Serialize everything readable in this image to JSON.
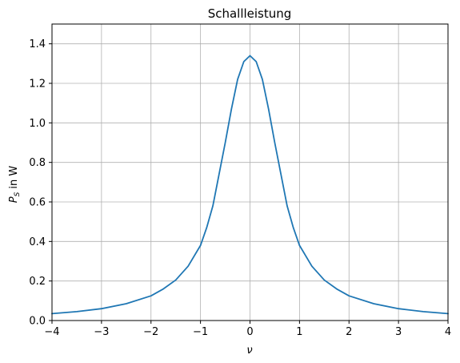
{
  "chart_data": {
    "type": "line",
    "title": "Schallleistung",
    "xlabel": "ν",
    "ylabel_main": "P",
    "ylabel_sub": "S",
    "ylabel_rest": " in W",
    "xlim": [
      -4,
      4
    ],
    "ylim": [
      0,
      1.5
    ],
    "x_ticks": [
      -4,
      -3,
      -2,
      -1,
      0,
      1,
      2,
      3,
      4
    ],
    "x_tick_labels": [
      "−4",
      "−3",
      "−2",
      "−1",
      "0",
      "1",
      "2",
      "3",
      "4"
    ],
    "y_ticks": [
      0,
      0.2,
      0.4,
      0.6,
      0.8,
      1.0,
      1.2,
      1.4
    ],
    "y_tick_labels": [
      "0.0",
      "0.2",
      "0.4",
      "0.6",
      "0.8",
      "1.0",
      "1.2",
      "1.4"
    ],
    "grid": true,
    "line_color": "#1f77b4",
    "grid_color": "#b0b0b0",
    "series": [
      {
        "x": [
          -4,
          -3.5,
          -3,
          -2.5,
          -2,
          -1.75,
          -1.5,
          -1.25,
          -1,
          -0.875,
          -0.75,
          -0.625,
          -0.5,
          -0.375,
          -0.25,
          -0.125,
          0,
          0.125,
          0.25,
          0.375,
          0.5,
          0.625,
          0.75,
          0.875,
          1,
          1.25,
          1.5,
          1.75,
          2,
          2.5,
          3,
          3.5,
          4
        ],
        "y": [
          0.035,
          0.045,
          0.06,
          0.085,
          0.125,
          0.16,
          0.205,
          0.275,
          0.38,
          0.47,
          0.58,
          0.74,
          0.9,
          1.07,
          1.22,
          1.31,
          1.34,
          1.31,
          1.22,
          1.07,
          0.9,
          0.74,
          0.58,
          0.47,
          0.38,
          0.275,
          0.205,
          0.16,
          0.125,
          0.085,
          0.06,
          0.045,
          0.035
        ]
      }
    ]
  }
}
